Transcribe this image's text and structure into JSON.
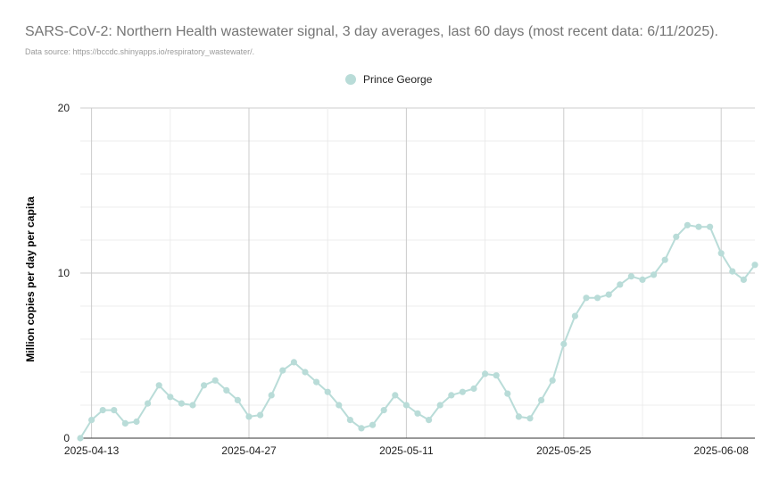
{
  "chart_data": {
    "type": "line",
    "title": "SARS-CoV-2: Northern Health wastewater signal, 3 day averages, last 60 days (most recent data: 6/11/2025).",
    "subtitle": "Data source: https://bccdc.shinyapps.io/respiratory_wastewater/.",
    "xlabel": "",
    "ylabel": "Million copies per day per capita",
    "ylim": [
      0,
      20
    ],
    "yticks": [
      0,
      10,
      20
    ],
    "x_start": "2025-04-12",
    "x_end": "2025-06-11",
    "x_tick_labels": [
      "2025-04-13",
      "2025-04-27",
      "2025-05-11",
      "2025-05-25",
      "2025-06-08"
    ],
    "legend_position": "top",
    "grid": true,
    "series": [
      {
        "name": "Prince George",
        "color": "#b9dcd8",
        "x": [
          "2025-04-12",
          "2025-04-13",
          "2025-04-14",
          "2025-04-15",
          "2025-04-16",
          "2025-04-17",
          "2025-04-18",
          "2025-04-19",
          "2025-04-20",
          "2025-04-21",
          "2025-04-22",
          "2025-04-23",
          "2025-04-24",
          "2025-04-25",
          "2025-04-26",
          "2025-04-27",
          "2025-04-28",
          "2025-04-29",
          "2025-04-30",
          "2025-05-01",
          "2025-05-02",
          "2025-05-03",
          "2025-05-04",
          "2025-05-05",
          "2025-05-06",
          "2025-05-07",
          "2025-05-08",
          "2025-05-09",
          "2025-05-10",
          "2025-05-11",
          "2025-05-12",
          "2025-05-13",
          "2025-05-14",
          "2025-05-15",
          "2025-05-16",
          "2025-05-17",
          "2025-05-18",
          "2025-05-19",
          "2025-05-20",
          "2025-05-21",
          "2025-05-22",
          "2025-05-23",
          "2025-05-24",
          "2025-05-25",
          "2025-05-26",
          "2025-05-27",
          "2025-05-28",
          "2025-05-29",
          "2025-05-30",
          "2025-05-31",
          "2025-06-01",
          "2025-06-02",
          "2025-06-03",
          "2025-06-04",
          "2025-06-05",
          "2025-06-06",
          "2025-06-07",
          "2025-06-08",
          "2025-06-09",
          "2025-06-10",
          "2025-06-11"
        ],
        "values": [
          0.0,
          1.1,
          1.7,
          1.7,
          0.9,
          1.0,
          2.1,
          3.2,
          2.5,
          2.1,
          2.0,
          3.2,
          3.5,
          2.9,
          2.3,
          1.3,
          1.4,
          2.6,
          4.1,
          4.6,
          4.0,
          3.4,
          2.8,
          2.0,
          1.1,
          0.6,
          0.8,
          1.7,
          2.6,
          2.0,
          1.5,
          1.1,
          2.0,
          2.6,
          2.8,
          3.0,
          3.9,
          3.8,
          2.7,
          1.3,
          1.2,
          2.3,
          3.5,
          5.7,
          7.4,
          8.5,
          8.5,
          8.7,
          9.3,
          9.8,
          9.6,
          9.9,
          10.8,
          12.2,
          12.9,
          12.8,
          12.8,
          11.2,
          10.1,
          9.6,
          10.5
        ]
      }
    ]
  }
}
